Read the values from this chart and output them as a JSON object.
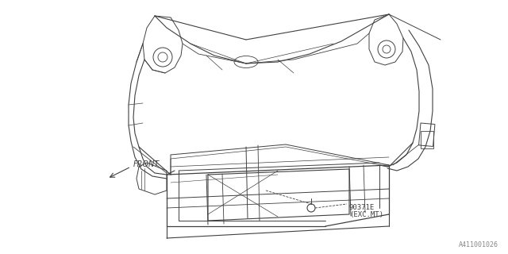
{
  "background_color": "#ffffff",
  "line_color": "#404040",
  "front_label": "FRONT",
  "part_label_1": "90371E",
  "part_label_2": "(EXC.MT)",
  "diagram_id": "A411001026",
  "figsize": [
    6.4,
    3.2
  ],
  "dpi": 100
}
